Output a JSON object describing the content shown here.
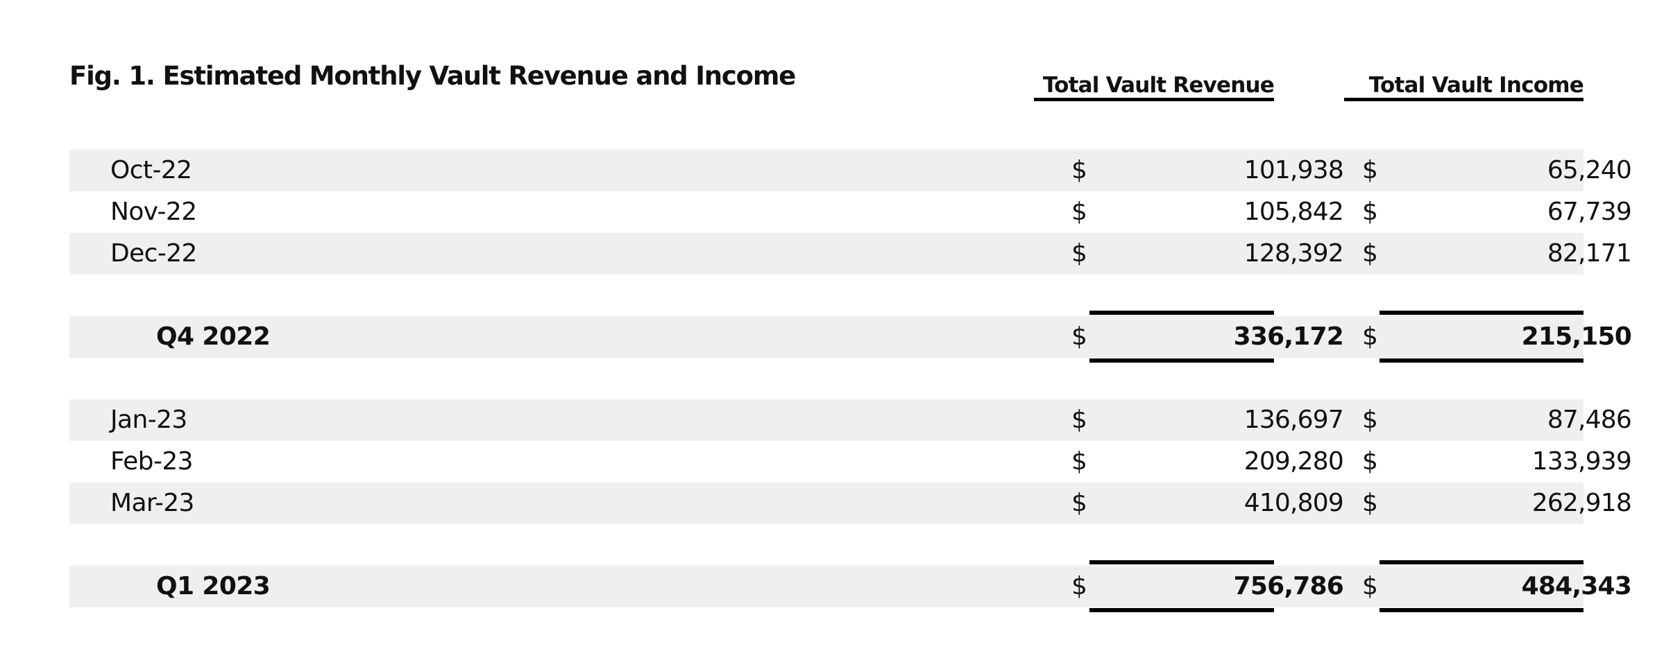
{
  "title": "Fig. 1. Estimated Monthly Vault Revenue and Income",
  "columns": {
    "revenue": "Total Vault Revenue",
    "income": "Total Vault Income"
  },
  "currency_symbol": "$",
  "months": [
    {
      "label": "Oct-22",
      "revenue": "101,938",
      "income": "65,240"
    },
    {
      "label": "Nov-22",
      "revenue": "105,842",
      "income": "67,739"
    },
    {
      "label": "Dec-22",
      "revenue": "128,392",
      "income": "82,171"
    },
    {
      "label": "Jan-23",
      "revenue": "136,697",
      "income": "87,486"
    },
    {
      "label": "Feb-23",
      "revenue": "209,280",
      "income": "133,939"
    },
    {
      "label": "Mar-23",
      "revenue": "410,809",
      "income": "262,918"
    }
  ],
  "quarters": [
    {
      "label": "Q4 2022",
      "revenue": "336,172",
      "income": "215,150"
    },
    {
      "label": "Q1 2023",
      "revenue": "756,786",
      "income": "484,343"
    }
  ],
  "colors": {
    "row_shade": "#efefef",
    "text": "#111111",
    "rule": "#000000"
  }
}
